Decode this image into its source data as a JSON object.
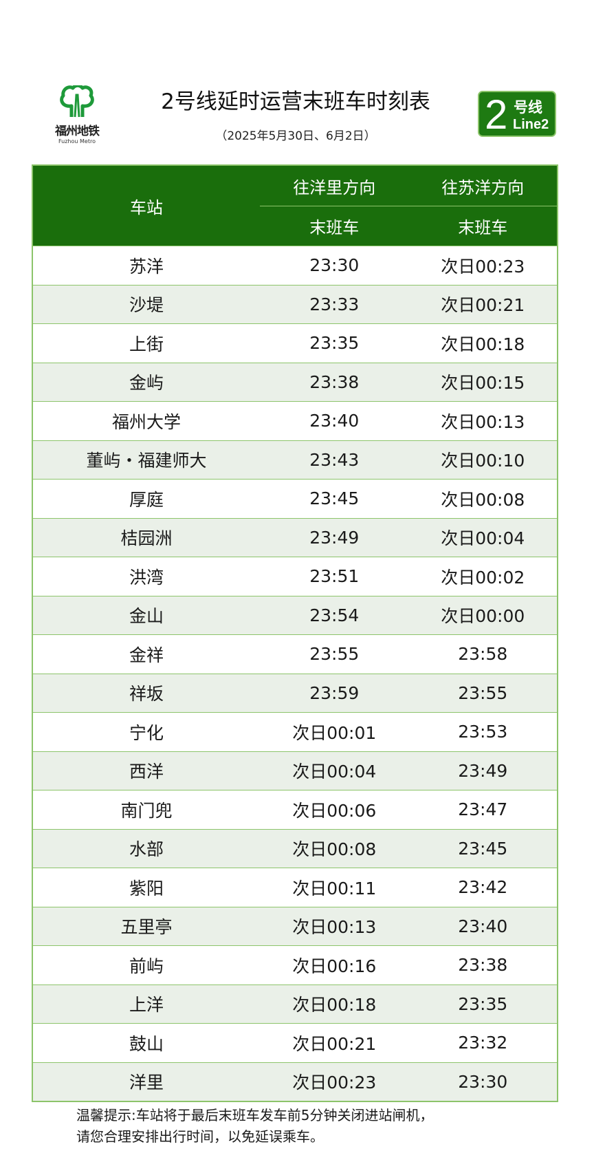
{
  "logo": {
    "name_cn": "福州地铁",
    "name_en": "Fuzhou Metro",
    "color": "#1e9a3a"
  },
  "title": "2号线延时运营末班车时刻表",
  "subtitle": "（2025年5月30日、6月2日）",
  "badge": {
    "number": "2",
    "label_cn": "号线",
    "label_en": "Line2",
    "color": "#1e7a12"
  },
  "table": {
    "station_header": "车站",
    "directions": [
      "往洋里方向",
      "往苏洋方向"
    ],
    "sub_headers": [
      "末班车",
      "末班车"
    ],
    "rows": [
      {
        "station": "苏洋",
        "to_yangli": "23:30",
        "to_suyang": "次日00:23"
      },
      {
        "station": "沙堤",
        "to_yangli": "23:33",
        "to_suyang": "次日00:21"
      },
      {
        "station": "上街",
        "to_yangli": "23:35",
        "to_suyang": "次日00:18"
      },
      {
        "station": "金屿",
        "to_yangli": "23:38",
        "to_suyang": "次日00:15"
      },
      {
        "station": "福州大学",
        "to_yangli": "23:40",
        "to_suyang": "次日00:13"
      },
      {
        "station": "董屿・福建师大",
        "to_yangli": "23:43",
        "to_suyang": "次日00:10"
      },
      {
        "station": "厚庭",
        "to_yangli": "23:45",
        "to_suyang": "次日00:08"
      },
      {
        "station": "桔园洲",
        "to_yangli": "23:49",
        "to_suyang": "次日00:04"
      },
      {
        "station": "洪湾",
        "to_yangli": "23:51",
        "to_suyang": "次日00:02"
      },
      {
        "station": "金山",
        "to_yangli": "23:54",
        "to_suyang": "次日00:00"
      },
      {
        "station": "金祥",
        "to_yangli": "23:55",
        "to_suyang": "23:58"
      },
      {
        "station": "祥坂",
        "to_yangli": "23:59",
        "to_suyang": "23:55"
      },
      {
        "station": "宁化",
        "to_yangli": "次日00:01",
        "to_suyang": "23:53"
      },
      {
        "station": "西洋",
        "to_yangli": "次日00:04",
        "to_suyang": "23:49"
      },
      {
        "station": "南门兜",
        "to_yangli": "次日00:06",
        "to_suyang": "23:47"
      },
      {
        "station": "水部",
        "to_yangli": "次日00:08",
        "to_suyang": "23:45"
      },
      {
        "station": "紫阳",
        "to_yangli": "次日00:11",
        "to_suyang": "23:42"
      },
      {
        "station": "五里亭",
        "to_yangli": "次日00:13",
        "to_suyang": "23:40"
      },
      {
        "station": "前屿",
        "to_yangli": "次日00:16",
        "to_suyang": "23:38"
      },
      {
        "station": "上洋",
        "to_yangli": "次日00:18",
        "to_suyang": "23:35"
      },
      {
        "station": "鼓山",
        "to_yangli": "次日00:21",
        "to_suyang": "23:32"
      },
      {
        "station": "洋里",
        "to_yangli": "次日00:23",
        "to_suyang": "23:30"
      }
    ]
  },
  "note": {
    "line1": "温馨提示:车站将于最后末班车发车前5分钟关闭进站闸机，",
    "line2": "请您合理安排出行时间，以免延误乘车。"
  },
  "colors": {
    "header": "#1a6e0c",
    "border": "#8cc46a",
    "alt_row": "#eaf0e8"
  }
}
